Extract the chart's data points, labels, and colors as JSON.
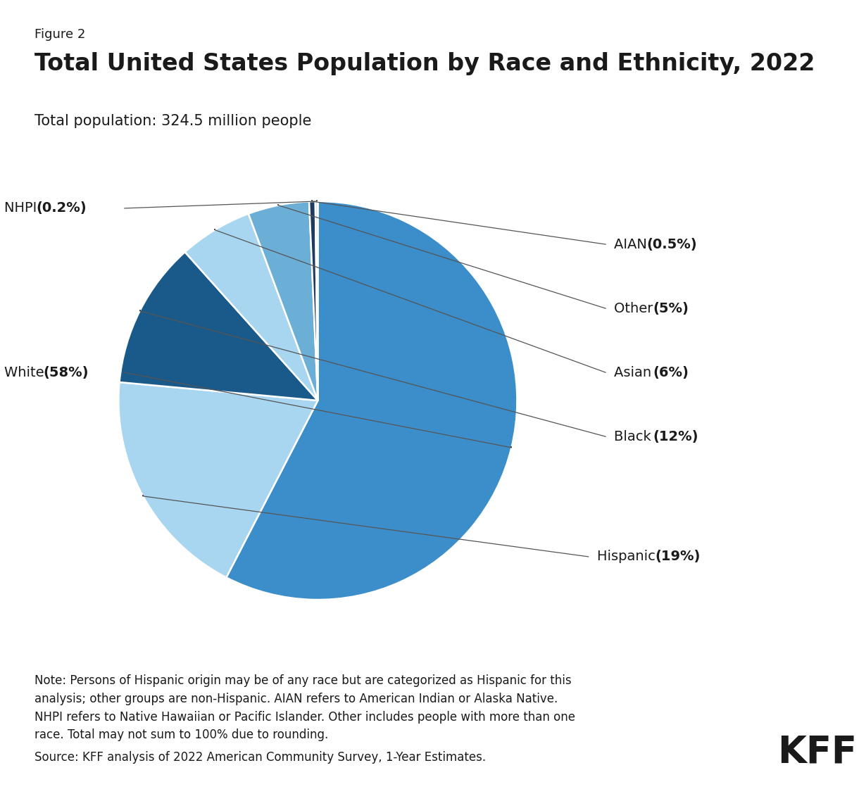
{
  "figure_label": "Figure 2",
  "title": "Total United States Population by Race and Ethnicity, 2022",
  "subtitle": "Total population: 324.5 million people",
  "slices": [
    {
      "label": "White",
      "pct_label": "58%",
      "value": 58,
      "color": "#3B8EC9"
    },
    {
      "label": "Hispanic",
      "pct_label": "19%",
      "value": 19,
      "color": "#A8D5F0"
    },
    {
      "label": "Black",
      "pct_label": "12%",
      "value": 12,
      "color": "#1A5A8A"
    },
    {
      "label": "Asian",
      "pct_label": "6%",
      "value": 6,
      "color": "#A8D5F0"
    },
    {
      "label": "Other",
      "pct_label": "5%",
      "value": 5,
      "color": "#6BAED6"
    },
    {
      "label": "AIAN",
      "pct_label": "0.5%",
      "value": 0.5,
      "color": "#1E3A5F"
    },
    {
      "label": "NHPI",
      "pct_label": "0.2%",
      "value": 0.2,
      "color": "#C6E3F5"
    }
  ],
  "note": "Note: Persons of Hispanic origin may be of any race but are categorized as Hispanic for this\nanalysis; other groups are non-Hispanic. AIAN refers to American Indian or Alaska Native.\nNHPI refers to Native Hawaiian or Pacific Islander. Other includes people with more than one\nrace. Total may not sum to 100% due to rounding.",
  "source": "Source: KFF analysis of 2022 American Community Survey, 1-Year Estimates.",
  "background_color": "#FFFFFF"
}
